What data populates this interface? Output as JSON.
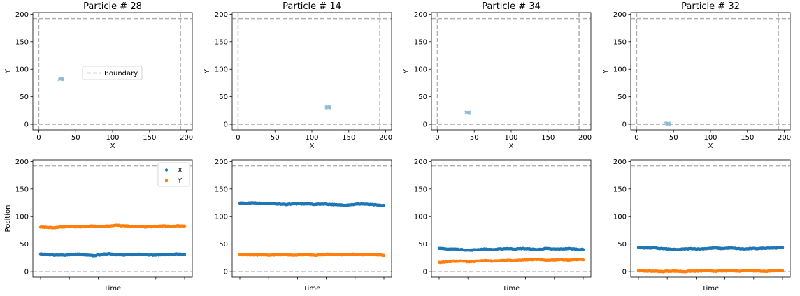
{
  "chart_data": [
    {
      "type": "scatter",
      "title": "Particle # 28",
      "xlabel": "X",
      "ylabel": "Y",
      "xlim": [
        -8,
        208
      ],
      "ylim": [
        -10,
        203
      ],
      "xticks": [
        0,
        50,
        100,
        150,
        200
      ],
      "yticks": [
        0,
        50,
        100,
        150,
        200
      ],
      "boundary": [
        0,
        192
      ],
      "legend": {
        "label": "Boundary",
        "location": "center-right"
      },
      "cluster": {
        "x": 30,
        "y": 82
      },
      "color": "#8fbad6"
    },
    {
      "type": "scatter",
      "title": "Particle # 14",
      "xlabel": "X",
      "ylabel": "Y",
      "xlim": [
        -8,
        208
      ],
      "ylim": [
        -10,
        203
      ],
      "xticks": [
        0,
        50,
        100,
        150,
        200
      ],
      "yticks": [
        0,
        50,
        100,
        150,
        200
      ],
      "boundary": [
        0,
        192
      ],
      "cluster": {
        "x": 122,
        "y": 31
      },
      "color": "#8fbad6"
    },
    {
      "type": "scatter",
      "title": "Particle # 34",
      "xlabel": "X",
      "ylabel": "Y",
      "xlim": [
        -8,
        208
      ],
      "ylim": [
        -10,
        203
      ],
      "xticks": [
        0,
        50,
        100,
        150,
        200
      ],
      "yticks": [
        0,
        50,
        100,
        150,
        200
      ],
      "boundary": [
        0,
        192
      ],
      "cluster": {
        "x": 41,
        "y": 21
      },
      "color": "#8fbad6"
    },
    {
      "type": "scatter",
      "title": "Particle # 32",
      "xlabel": "X",
      "ylabel": "Y",
      "xlim": [
        -8,
        208
      ],
      "ylim": [
        -10,
        203
      ],
      "xticks": [
        0,
        50,
        100,
        150,
        200
      ],
      "yticks": [
        0,
        50,
        100,
        150,
        200
      ],
      "boundary": [
        0,
        192
      ],
      "cluster": {
        "x": 42,
        "y": 1
      },
      "color": "#8fbad6"
    },
    {
      "type": "line",
      "xlabel": "Time",
      "ylabel": "Position",
      "ylim": [
        -10,
        203
      ],
      "yticks": [
        0,
        50,
        100,
        150,
        200
      ],
      "boundary": [
        0,
        192
      ],
      "legend": {
        "location": "top-right"
      },
      "series": [
        {
          "name": "X",
          "color": "#1f77b4",
          "values": [
            32,
            31,
            30,
            30,
            31,
            32,
            30,
            29,
            31,
            33,
            31,
            30,
            31,
            32,
            31,
            30,
            31,
            31,
            32,
            31
          ]
        },
        {
          "name": "Y",
          "color": "#ff7f0e",
          "values": [
            81,
            80,
            80,
            81,
            82,
            81,
            82,
            83,
            82,
            83,
            84,
            83,
            82,
            82,
            81,
            82,
            83,
            82,
            83,
            83
          ]
        }
      ]
    },
    {
      "type": "line",
      "xlabel": "Time",
      "ylim": [
        -10,
        203
      ],
      "yticks": [
        0,
        50,
        100,
        150,
        200
      ],
      "boundary": [
        0,
        192
      ],
      "series": [
        {
          "name": "X",
          "color": "#1f77b4",
          "values": [
            125,
            124,
            125,
            124,
            124,
            123,
            122,
            123,
            123,
            123,
            122,
            123,
            122,
            121,
            121,
            122,
            123,
            122,
            121,
            120
          ]
        },
        {
          "name": "Y",
          "color": "#ff7f0e",
          "values": [
            31,
            31,
            30,
            31,
            30,
            31,
            31,
            30,
            31,
            31,
            30,
            31,
            32,
            31,
            31,
            32,
            31,
            31,
            31,
            30
          ]
        }
      ]
    },
    {
      "type": "line",
      "xlabel": "Time",
      "ylim": [
        -10,
        203
      ],
      "yticks": [
        0,
        50,
        100,
        150,
        200
      ],
      "boundary": [
        0,
        192
      ],
      "series": [
        {
          "name": "X",
          "color": "#1f77b4",
          "values": [
            42,
            41,
            41,
            40,
            39,
            40,
            41,
            40,
            41,
            42,
            41,
            42,
            41,
            40,
            42,
            41,
            41,
            42,
            41,
            40
          ]
        },
        {
          "name": "Y",
          "color": "#ff7f0e",
          "values": [
            17,
            18,
            19,
            19,
            18,
            19,
            20,
            19,
            20,
            21,
            20,
            21,
            22,
            22,
            21,
            21,
            22,
            21,
            22,
            22
          ]
        }
      ]
    },
    {
      "type": "line",
      "xlabel": "Time",
      "ylim": [
        -10,
        203
      ],
      "yticks": [
        0,
        50,
        100,
        150,
        200
      ],
      "boundary": [
        0,
        192
      ],
      "series": [
        {
          "name": "X",
          "color": "#1f77b4",
          "values": [
            44,
            43,
            43,
            42,
            41,
            40,
            41,
            42,
            41,
            42,
            43,
            42,
            43,
            42,
            41,
            42,
            42,
            43,
            43,
            44
          ]
        },
        {
          "name": "Y",
          "color": "#ff7f0e",
          "values": [
            2,
            1,
            1,
            0,
            1,
            1,
            0,
            1,
            1,
            2,
            1,
            1,
            2,
            1,
            2,
            2,
            1,
            1,
            2,
            2
          ]
        }
      ]
    }
  ]
}
